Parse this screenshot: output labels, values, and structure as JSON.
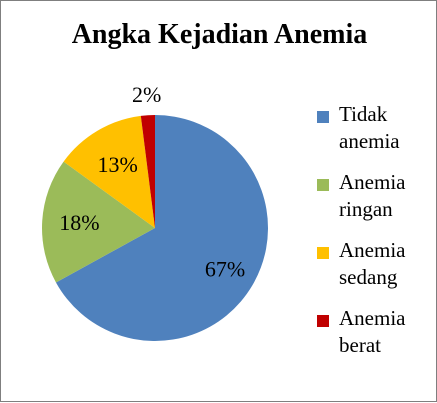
{
  "chart_data": {
    "type": "pie",
    "title": "Angka Kejadian Anemia",
    "categories": [
      "Tidak anemia",
      "Anemia ringan",
      "Anemia sedang",
      "Anemia berat"
    ],
    "values": [
      67,
      18,
      13,
      2
    ],
    "labels": [
      "67%",
      "18%",
      "13%",
      "2%"
    ],
    "colors": [
      "#4f81bd",
      "#9bbb59",
      "#ffc000",
      "#c00000"
    ],
    "legend": "right",
    "legend_lines": [
      [
        "Tidak",
        "anemia"
      ],
      [
        "Anemia",
        "ringan"
      ],
      [
        "Anemia",
        "sedang"
      ],
      [
        "Anemia",
        "berat"
      ]
    ]
  }
}
